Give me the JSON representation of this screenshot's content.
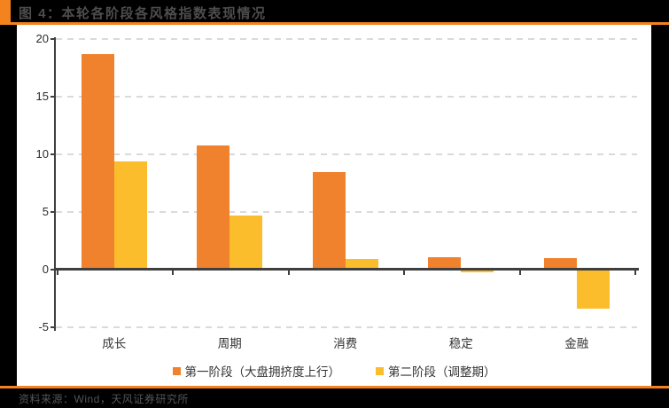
{
  "header": {
    "title": "图 4：本轮各阶段各风格指数表现情况"
  },
  "footer": {
    "source": "资料来源：Wind，天风证券研究所"
  },
  "colors": {
    "accent_orange": "#F4821F",
    "series1_orange": "#F0822D",
    "series2_yellow": "#FBBD2C",
    "page_background": "#000000",
    "panel_background": "#FFFFFF",
    "axis": "#3F3F3F",
    "gridline": "#DADADA",
    "title_text": "#4D4D4D"
  },
  "chart_data": {
    "type": "bar",
    "title": "本轮各阶段各风格指数表现情况",
    "categories": [
      "成长",
      "周期",
      "消费",
      "稳定",
      "金融"
    ],
    "series": [
      {
        "name": "第一阶段（大盘拥挤度上行）",
        "color": "#F0822D",
        "values": [
          18.7,
          10.8,
          8.5,
          1.1,
          1.0
        ]
      },
      {
        "name": "第二阶段（调整期）",
        "color": "#FBBD2C",
        "values": [
          9.4,
          4.7,
          0.9,
          -0.2,
          -3.4
        ]
      }
    ],
    "xlabel": "",
    "ylabel": "",
    "ylim": [
      -5,
      20
    ],
    "yticks": [
      20,
      15,
      10,
      5,
      0,
      -5
    ],
    "grid": "horizontal-dashed",
    "legend_position": "bottom"
  }
}
